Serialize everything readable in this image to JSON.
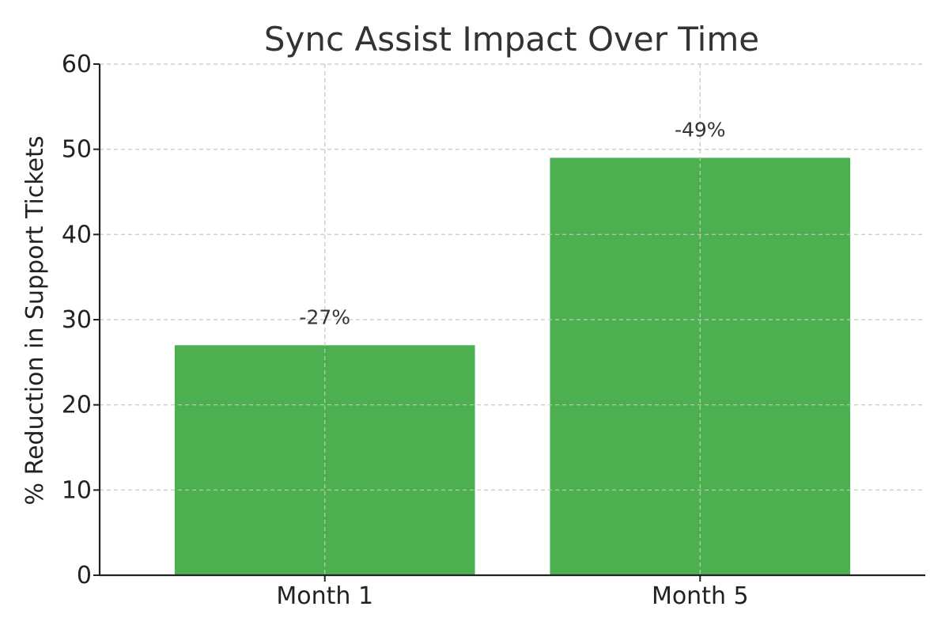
{
  "chart_data": {
    "type": "bar",
    "title": "Sync Assist Impact Over Time",
    "xlabel": "",
    "ylabel": "% Reduction in Support Tickets",
    "categories": [
      "Month 1",
      "Month 5"
    ],
    "values": [
      27,
      49
    ],
    "data_labels": [
      "-27%",
      "-49%"
    ],
    "ylim": [
      0,
      60
    ],
    "yticks": [
      0,
      10,
      20,
      30,
      40,
      50,
      60
    ],
    "grid": true,
    "legend": "none"
  },
  "colors": {
    "bar": "#4caf50",
    "grid": "#cccccc",
    "axis": "#222222",
    "title": "#333333",
    "text": "#222222"
  }
}
